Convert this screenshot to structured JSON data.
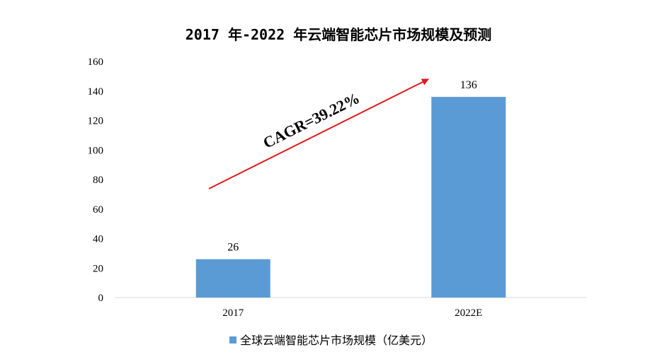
{
  "chart_data": {
    "type": "bar",
    "title": "2017 年-2022 年云端智能芯片市场规模及预测",
    "categories": [
      "2017",
      "2022E"
    ],
    "series": [
      {
        "name": "全球云端智能芯片市场规模（亿美元）",
        "values": [
          26,
          136
        ],
        "color": "#5b9bd5"
      }
    ],
    "data_labels": [
      "26",
      "136"
    ],
    "y_ticks": [
      0,
      20,
      40,
      60,
      80,
      100,
      120,
      140,
      160
    ],
    "ylim": [
      0,
      160
    ],
    "grid": false,
    "legend_position": "bottom",
    "annotation": {
      "text": "CAGR=39.22%",
      "arrow_color": "#e31a1c"
    }
  }
}
